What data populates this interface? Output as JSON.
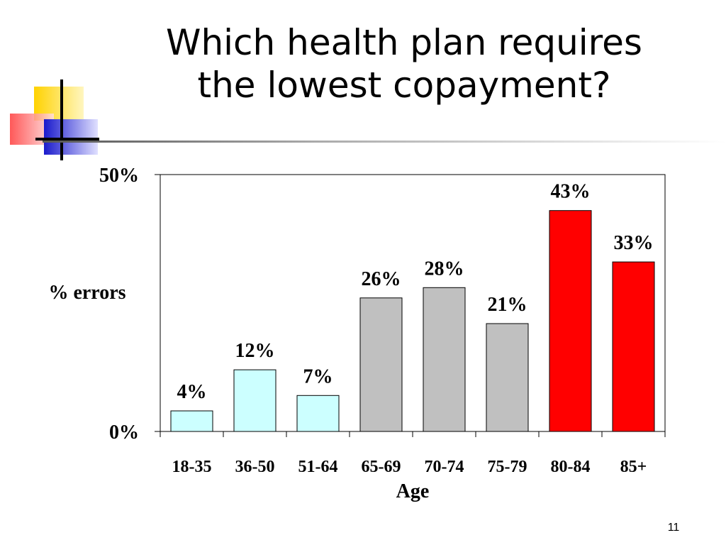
{
  "slide": {
    "title_lines": [
      "Which health plan requires",
      "the lowest copayment?"
    ],
    "slide_number": "11"
  },
  "chart_data": {
    "type": "bar",
    "title": "",
    "categories": [
      "18-35",
      "36-50",
      "51-64",
      "65-69",
      "70-74",
      "75-79",
      "80-84",
      "85+"
    ],
    "values": [
      4,
      12,
      7,
      26,
      28,
      21,
      43,
      33
    ],
    "value_labels": [
      "4%",
      "12%",
      "7%",
      "26%",
      "28%",
      "21%",
      "43%",
      "33%"
    ],
    "bar_colors": [
      "#ccffff",
      "#ccffff",
      "#ccffff",
      "#c0c0c0",
      "#c0c0c0",
      "#c0c0c0",
      "#ff0000",
      "#ff0000"
    ],
    "xlabel": "Age",
    "ylabel": "% errors",
    "ylim": [
      0,
      50
    ],
    "yticks": [
      0,
      50
    ],
    "ytick_labels": [
      "0%",
      "50%"
    ],
    "grid": false,
    "legend": "none"
  }
}
